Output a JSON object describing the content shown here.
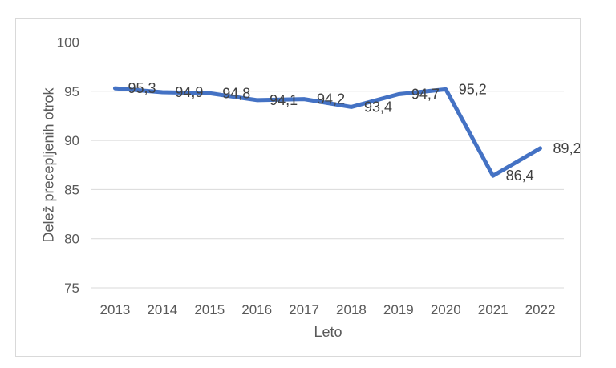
{
  "chart_data": {
    "type": "line",
    "x": [
      "2013",
      "2014",
      "2015",
      "2016",
      "2017",
      "2018",
      "2019",
      "2020",
      "2021",
      "2022"
    ],
    "values": [
      95.3,
      94.9,
      94.8,
      94.1,
      94.2,
      93.4,
      94.7,
      95.2,
      86.4,
      89.2
    ],
    "point_labels": [
      "95,3",
      "94,9",
      "94,8",
      "94,1",
      "94,2",
      "93,4",
      "94,7",
      "95,2",
      "86,4",
      "89,2"
    ],
    "title": "",
    "xlabel": "Leto",
    "ylabel": "Delež precepljenih otrok",
    "ylim": [
      75,
      100
    ],
    "yticks": [
      100,
      95,
      90,
      85,
      80,
      75
    ],
    "grid": "horizontal",
    "legend": "none",
    "line_color": "#4472C4",
    "label_position": "right"
  },
  "colors": {
    "line": "#4472C4",
    "grid": "#D9D9D9",
    "frame_border": "#D9D9D9",
    "axis_text": "#595959",
    "data_label_text": "#404040",
    "background": "#FFFFFF"
  }
}
